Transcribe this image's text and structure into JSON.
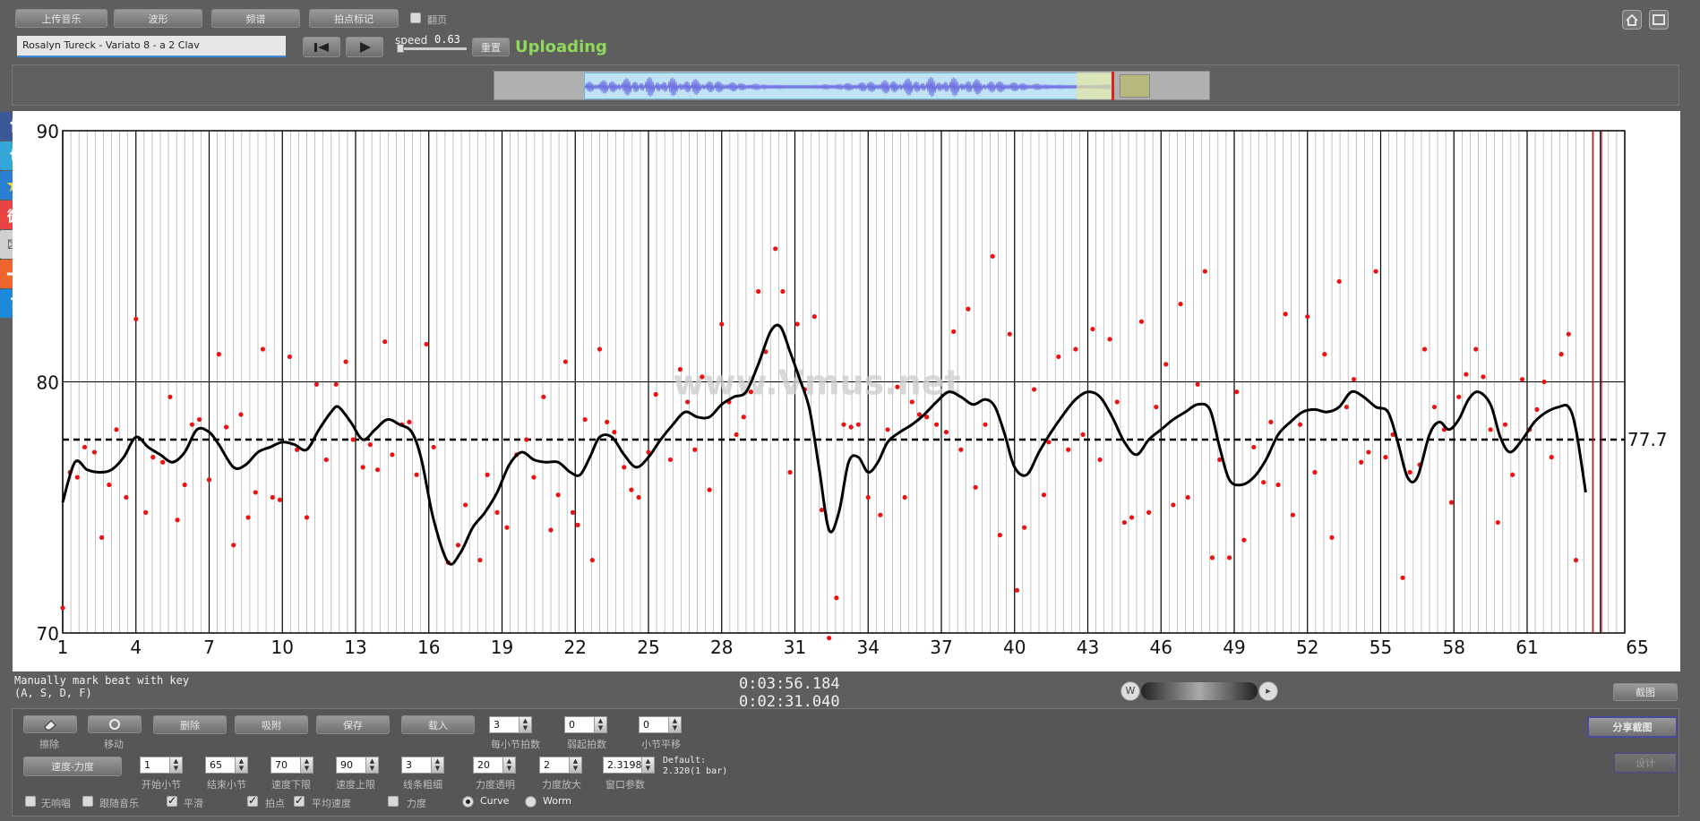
{
  "toolbar": {
    "upload": "上传音乐",
    "waveform": "波形",
    "spectrum": "频谱",
    "beat_mark": "拍点标记",
    "follow_label": "翻页"
  },
  "track": {
    "title": "Rosalyn Tureck - Variato 8 - a 2 Clav"
  },
  "playback": {
    "speed_label": "speed",
    "speed_value": "0.63",
    "reset_label": "重置",
    "status": "Uploading"
  },
  "chart_data": {
    "type": "scatter",
    "xlim": [
      1,
      65
    ],
    "ylim": [
      70,
      90
    ],
    "x_ticks": [
      "1",
      "4",
      "7",
      "10",
      "13",
      "16",
      "19",
      "22",
      "25",
      "28",
      "31",
      "34",
      "37",
      "40",
      "43",
      "46",
      "49",
      "52",
      "55",
      "58",
      "61",
      "65"
    ],
    "y_ticks": [
      "70",
      "80",
      "90"
    ],
    "mean_value": 77.7,
    "mean_label": "77.7",
    "watermark": "www.Vmus.net",
    "grid": true,
    "points": [
      [
        1,
        71
      ],
      [
        1.3,
        76.4
      ],
      [
        1.6,
        76.2
      ],
      [
        1.9,
        77.4
      ],
      [
        2.3,
        77.2
      ],
      [
        2.6,
        73.8
      ],
      [
        2.9,
        75.9
      ],
      [
        3.2,
        78.1
      ],
      [
        3.6,
        75.4
      ],
      [
        4,
        82.5
      ],
      [
        4.4,
        74.8
      ],
      [
        4.7,
        77
      ],
      [
        5.1,
        76.8
      ],
      [
        5.4,
        79.4
      ],
      [
        5.7,
        74.5
      ],
      [
        6,
        75.9
      ],
      [
        6.3,
        78.3
      ],
      [
        6.6,
        78.5
      ],
      [
        7,
        76.1
      ],
      [
        7.4,
        81.1
      ],
      [
        7.7,
        78.2
      ],
      [
        8,
        73.5
      ],
      [
        8.3,
        78.7
      ],
      [
        8.6,
        74.6
      ],
      [
        8.9,
        75.6
      ],
      [
        9.2,
        81.3
      ],
      [
        9.6,
        75.4
      ],
      [
        9.9,
        75.3
      ],
      [
        10.3,
        81
      ],
      [
        10.6,
        77.3
      ],
      [
        11,
        74.6
      ],
      [
        11.4,
        79.9
      ],
      [
        11.8,
        76.9
      ],
      [
        12.2,
        79.9
      ],
      [
        12.6,
        80.8
      ],
      [
        12.9,
        77.7
      ],
      [
        13.3,
        76.6
      ],
      [
        13.6,
        77.5
      ],
      [
        13.9,
        76.5
      ],
      [
        14.2,
        81.6
      ],
      [
        14.5,
        77.1
      ],
      [
        14.9,
        78.3
      ],
      [
        15.2,
        78.4
      ],
      [
        15.5,
        76.3
      ],
      [
        15.9,
        81.5
      ],
      [
        16.2,
        77.4
      ],
      [
        16.8,
        72.8
      ],
      [
        17.2,
        73.5
      ],
      [
        17.5,
        75.1
      ],
      [
        18.1,
        72.9
      ],
      [
        18.4,
        76.3
      ],
      [
        18.8,
        74.8
      ],
      [
        19.2,
        74.2
      ],
      [
        19.6,
        77.1
      ],
      [
        20,
        77.7
      ],
      [
        20.3,
        76.2
      ],
      [
        20.7,
        79.4
      ],
      [
        21,
        74.1
      ],
      [
        21.3,
        75.5
      ],
      [
        21.6,
        80.8
      ],
      [
        21.9,
        74.8
      ],
      [
        22.1,
        74.3
      ],
      [
        22.4,
        78.5
      ],
      [
        22.7,
        72.9
      ],
      [
        23,
        81.3
      ],
      [
        23.3,
        78.4
      ],
      [
        23.6,
        78
      ],
      [
        24,
        76.6
      ],
      [
        24.3,
        75.7
      ],
      [
        24.6,
        75.4
      ],
      [
        25,
        77.2
      ],
      [
        25.3,
        79.5
      ],
      [
        25.9,
        76.9
      ],
      [
        26.3,
        80.5
      ],
      [
        26.6,
        79.2
      ],
      [
        26.9,
        77.3
      ],
      [
        27.2,
        80.2
      ],
      [
        27.5,
        75.7
      ],
      [
        28,
        82.3
      ],
      [
        28.3,
        79.2
      ],
      [
        28.6,
        77.9
      ],
      [
        28.9,
        78.6
      ],
      [
        29.2,
        79.6
      ],
      [
        29.5,
        83.6
      ],
      [
        29.8,
        81.2
      ],
      [
        30.2,
        85.3
      ],
      [
        30.5,
        83.6
      ],
      [
        30.8,
        76.4
      ],
      [
        31.1,
        82.3
      ],
      [
        31.4,
        79.7
      ],
      [
        31.8,
        82.6
      ],
      [
        32.1,
        74.9
      ],
      [
        32.4,
        69.8
      ],
      [
        32.7,
        71.4
      ],
      [
        33,
        78.3
      ],
      [
        33.3,
        78.2
      ],
      [
        33.6,
        78.3
      ],
      [
        34,
        75.4
      ],
      [
        34.5,
        74.7
      ],
      [
        34.8,
        78.1
      ],
      [
        35.2,
        79.8
      ],
      [
        35.5,
        75.4
      ],
      [
        35.8,
        79.2
      ],
      [
        36.1,
        78.7
      ],
      [
        36.4,
        78.6
      ],
      [
        36.8,
        78.3
      ],
      [
        37.2,
        78
      ],
      [
        37.5,
        82
      ],
      [
        37.8,
        77.3
      ],
      [
        38.1,
        82.9
      ],
      [
        38.4,
        75.8
      ],
      [
        38.8,
        78.3
      ],
      [
        39.1,
        85
      ],
      [
        39.4,
        73.9
      ],
      [
        39.8,
        81.9
      ],
      [
        40.1,
        71.7
      ],
      [
        40.4,
        74.2
      ],
      [
        40.8,
        79.7
      ],
      [
        41.2,
        75.5
      ],
      [
        41.4,
        77.6
      ],
      [
        41.8,
        81
      ],
      [
        42.2,
        77.3
      ],
      [
        42.5,
        81.3
      ],
      [
        42.8,
        77.9
      ],
      [
        43.2,
        82.1
      ],
      [
        43.5,
        76.9
      ],
      [
        43.9,
        81.7
      ],
      [
        44.2,
        79.2
      ],
      [
        44.5,
        74.4
      ],
      [
        44.8,
        74.6
      ],
      [
        45.2,
        82.4
      ],
      [
        45.5,
        74.8
      ],
      [
        45.8,
        79
      ],
      [
        46.2,
        80.7
      ],
      [
        46.5,
        75.1
      ],
      [
        46.8,
        83.1
      ],
      [
        47.1,
        75.4
      ],
      [
        47.5,
        79.9
      ],
      [
        47.8,
        84.4
      ],
      [
        48.1,
        73
      ],
      [
        48.4,
        76.9
      ],
      [
        48.8,
        73
      ],
      [
        49.1,
        79.6
      ],
      [
        49.4,
        73.7
      ],
      [
        49.8,
        77.4
      ],
      [
        50.2,
        76
      ],
      [
        50.5,
        78.4
      ],
      [
        50.8,
        75.9
      ],
      [
        51.1,
        82.7
      ],
      [
        51.4,
        74.7
      ],
      [
        51.7,
        78.3
      ],
      [
        52,
        82.6
      ],
      [
        52.3,
        76.4
      ],
      [
        52.7,
        81.1
      ],
      [
        53,
        73.8
      ],
      [
        53.3,
        84
      ],
      [
        53.6,
        79
      ],
      [
        53.9,
        80.1
      ],
      [
        54.2,
        76.8
      ],
      [
        54.5,
        77.2
      ],
      [
        54.8,
        84.4
      ],
      [
        55.2,
        77
      ],
      [
        55.5,
        77.9
      ],
      [
        55.9,
        72.2
      ],
      [
        56.2,
        76.4
      ],
      [
        56.6,
        76.7
      ],
      [
        56.8,
        81.3
      ],
      [
        57.2,
        79
      ],
      [
        57.6,
        78.1
      ],
      [
        57.9,
        75.2
      ],
      [
        58.2,
        79.4
      ],
      [
        58.5,
        80.3
      ],
      [
        58.9,
        81.3
      ],
      [
        59.2,
        80.2
      ],
      [
        59.5,
        78.1
      ],
      [
        59.8,
        74.4
      ],
      [
        60.1,
        78.3
      ],
      [
        60.4,
        76.3
      ],
      [
        60.8,
        80.1
      ],
      [
        61.1,
        78.1
      ],
      [
        61.4,
        78.9
      ],
      [
        61.7,
        80
      ],
      [
        62,
        77
      ],
      [
        62.4,
        81.1
      ],
      [
        62.7,
        81.9
      ],
      [
        63,
        72.9
      ]
    ],
    "curve": [
      [
        1,
        75.2
      ],
      [
        1.5,
        76.8
      ],
      [
        2,
        76.5
      ],
      [
        2.5,
        76.4
      ],
      [
        3,
        76.5
      ],
      [
        3.5,
        77
      ],
      [
        4,
        77.8
      ],
      [
        4.5,
        77.4
      ],
      [
        5,
        77.1
      ],
      [
        5.5,
        76.8
      ],
      [
        6,
        77.2
      ],
      [
        6.5,
        78.1
      ],
      [
        7,
        78
      ],
      [
        7.4,
        77.5
      ],
      [
        8,
        76.6
      ],
      [
        8.5,
        76.7
      ],
      [
        9,
        77.2
      ],
      [
        9.5,
        77.4
      ],
      [
        10,
        77.6
      ],
      [
        10.5,
        77.5
      ],
      [
        11,
        77.3
      ],
      [
        11.5,
        78.1
      ],
      [
        12,
        78.8
      ],
      [
        12.3,
        79
      ],
      [
        12.8,
        78.4
      ],
      [
        13.3,
        77.7
      ],
      [
        13.8,
        78.1
      ],
      [
        14.3,
        78.5
      ],
      [
        14.8,
        78.3
      ],
      [
        15.3,
        78
      ],
      [
        15.7,
        76.9
      ],
      [
        16.2,
        74.5
      ],
      [
        16.8,
        72.8
      ],
      [
        17.3,
        73.2
      ],
      [
        17.8,
        74.2
      ],
      [
        18.3,
        74.8
      ],
      [
        18.8,
        75.6
      ],
      [
        19.3,
        76.7
      ],
      [
        19.8,
        77.2
      ],
      [
        20.3,
        76.9
      ],
      [
        20.8,
        76.8
      ],
      [
        21.3,
        76.8
      ],
      [
        21.8,
        76.4
      ],
      [
        22.2,
        76.3
      ],
      [
        22.6,
        77
      ],
      [
        23,
        77.8
      ],
      [
        23.5,
        77.8
      ],
      [
        24,
        77.1
      ],
      [
        24.5,
        76.6
      ],
      [
        25,
        77
      ],
      [
        25.5,
        77.7
      ],
      [
        26,
        78.3
      ],
      [
        26.5,
        78.8
      ],
      [
        27,
        78.6
      ],
      [
        27.5,
        78.6
      ],
      [
        28,
        79.1
      ],
      [
        28.5,
        79.4
      ],
      [
        29,
        79.6
      ],
      [
        29.5,
        80.7
      ],
      [
        30,
        82
      ],
      [
        30.4,
        82.2
      ],
      [
        30.8,
        81.2
      ],
      [
        31.2,
        80.1
      ],
      [
        31.6,
        78.9
      ],
      [
        32,
        76.5
      ],
      [
        32.4,
        74.1
      ],
      [
        32.8,
        74.8
      ],
      [
        33.2,
        76.8
      ],
      [
        33.6,
        77
      ],
      [
        34,
        76.4
      ],
      [
        34.4,
        76.8
      ],
      [
        34.8,
        77.6
      ],
      [
        35.3,
        78
      ],
      [
        35.8,
        78.3
      ],
      [
        36.3,
        78.7
      ],
      [
        36.8,
        79.2
      ],
      [
        37.3,
        79.6
      ],
      [
        37.8,
        79.4
      ],
      [
        38.3,
        79.1
      ],
      [
        38.8,
        79.3
      ],
      [
        39.2,
        79
      ],
      [
        39.6,
        77.9
      ],
      [
        40,
        76.6
      ],
      [
        40.5,
        76.3
      ],
      [
        41,
        77.2
      ],
      [
        41.5,
        78
      ],
      [
        42,
        78.7
      ],
      [
        42.5,
        79.3
      ],
      [
        43,
        79.6
      ],
      [
        43.5,
        79.4
      ],
      [
        44,
        78.6
      ],
      [
        44.5,
        77.6
      ],
      [
        45,
        77.1
      ],
      [
        45.5,
        77.7
      ],
      [
        46,
        78.1
      ],
      [
        46.5,
        78.5
      ],
      [
        47,
        78.8
      ],
      [
        47.5,
        79.1
      ],
      [
        48,
        78.9
      ],
      [
        48.4,
        77.4
      ],
      [
        48.8,
        76.1
      ],
      [
        49.3,
        75.9
      ],
      [
        49.8,
        76.2
      ],
      [
        50.3,
        76.9
      ],
      [
        50.8,
        77.9
      ],
      [
        51.3,
        78.4
      ],
      [
        51.8,
        78.8
      ],
      [
        52.3,
        78.9
      ],
      [
        52.8,
        78.8
      ],
      [
        53.3,
        79
      ],
      [
        53.8,
        79.6
      ],
      [
        54.3,
        79.4
      ],
      [
        54.8,
        79
      ],
      [
        55.3,
        78.8
      ],
      [
        55.7,
        77.6
      ],
      [
        56.1,
        76.2
      ],
      [
        56.5,
        76.2
      ],
      [
        57,
        77.9
      ],
      [
        57.4,
        78.4
      ],
      [
        57.8,
        78.1
      ],
      [
        58.2,
        78.5
      ],
      [
        58.6,
        79.3
      ],
      [
        59,
        79.6
      ],
      [
        59.5,
        79.1
      ],
      [
        59.9,
        77.8
      ],
      [
        60.3,
        77.2
      ],
      [
        60.8,
        77.7
      ],
      [
        61.3,
        78.4
      ],
      [
        61.8,
        78.8
      ],
      [
        62.3,
        79
      ],
      [
        62.7,
        79
      ],
      [
        63,
        78.1
      ],
      [
        63.4,
        75.6
      ]
    ]
  },
  "info": {
    "hint_line1": "Manually mark beat with key",
    "hint_line2": "(A, S, D, F)",
    "time_total": "0:03:56.184",
    "time_current": "0:02:31.040",
    "screenshot_btn": "截图",
    "share_btn": "分享截图",
    "disabled_btn": "设计"
  },
  "controls": {
    "erase": "擦除",
    "move": "移动",
    "delete": "删除",
    "snap": "吸附",
    "save": "保存",
    "load": "载入",
    "beats_per_bar_label": "每小节拍数",
    "beats_per_bar": "3",
    "start_beat_label": "弱起拍数",
    "start_beat": "0",
    "bar_shift_label": "小节平移",
    "bar_shift": "0",
    "mode_btn": "速度-力度",
    "start_bar_label": "开始小节",
    "start_bar": "1",
    "end_bar_label": "结束小节",
    "end_bar": "65",
    "tempo_min_label": "速度下限",
    "tempo_min": "70",
    "tempo_max_label": "速度上限",
    "tempo_max": "90",
    "line_width_label": "线条粗细",
    "line_width": "3",
    "dyn_alpha_label": "力度透明",
    "dyn_alpha": "20",
    "dyn_zoom_label": "力度放大",
    "dyn_zoom": "2",
    "window_label": "窗口参数",
    "window": "2.3198",
    "default_line1": "Default:",
    "default_line2": "2.320(1 bar)"
  },
  "options": {
    "no_beats": "无响唱",
    "follow_music": "跟随音乐",
    "smooth": "平滑",
    "beat_points": "拍点",
    "avg_speed": "平均速度",
    "dynamics": "力度",
    "curve": "Curve",
    "worm": "Worm"
  }
}
